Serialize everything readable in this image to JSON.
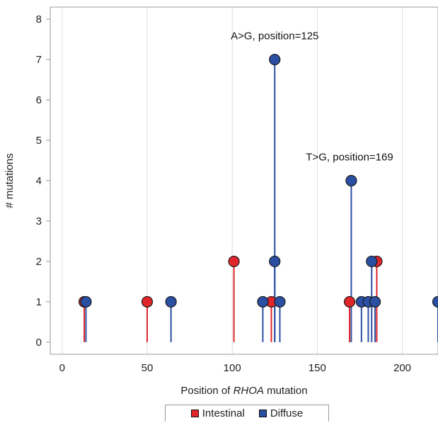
{
  "chart_data": {
    "type": "scatter",
    "xlabel_prefix": "Position of ",
    "xlabel_italic": "RHOA",
    "xlabel_suffix": " mutation",
    "ylabel": "# mutations",
    "xlim": [
      -7,
      221
    ],
    "ylim": [
      -0.3,
      8.3
    ],
    "xticks": [
      0,
      50,
      100,
      150,
      200
    ],
    "yticks": [
      0,
      1,
      2,
      3,
      4,
      5,
      6,
      7,
      8
    ],
    "grid": "vertical",
    "legend_position": "bottom",
    "series": [
      {
        "name": "Intestinal",
        "color": "#e0262b",
        "x": [
          13,
          50,
          101,
          123,
          169,
          185
        ],
        "y": [
          1,
          1,
          2,
          1,
          1,
          2
        ]
      },
      {
        "name": "Diffuse",
        "color": "#2a4fa3",
        "x": [
          14,
          64,
          118,
          125,
          125,
          128,
          170,
          176,
          180,
          182,
          184,
          221
        ],
        "y": [
          1,
          1,
          1,
          7,
          2,
          1,
          4,
          1,
          1,
          2,
          1,
          1
        ]
      }
    ],
    "annotations": [
      {
        "text": "A>G, position=125",
        "x": 125,
        "y": 7.5
      },
      {
        "text": "T>G, position=169",
        "x": 169,
        "y": 4.5
      }
    ]
  }
}
